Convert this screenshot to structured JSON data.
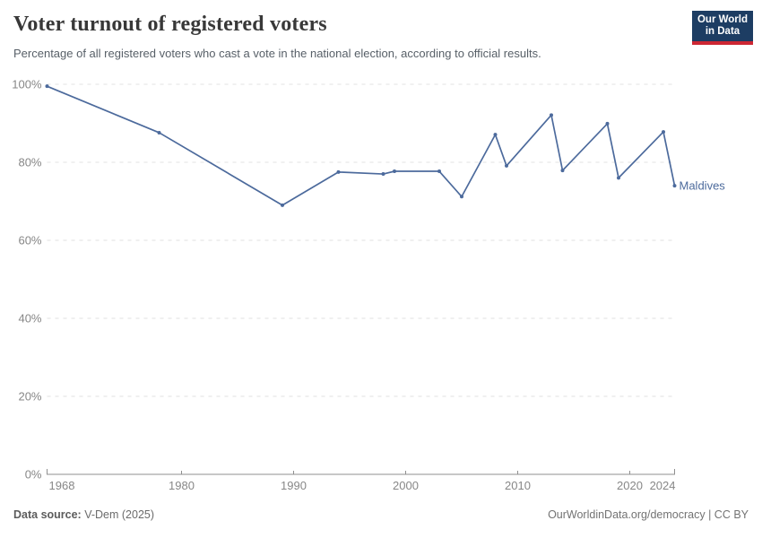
{
  "header": {
    "title": "Voter turnout of registered voters",
    "subtitle": "Percentage of all registered voters who cast a vote in the national election, according to official results."
  },
  "logo": {
    "line1": "Our World",
    "line2": "in Data",
    "bg_color": "#1d3d63",
    "accent_color": "#cd2733"
  },
  "chart_data": {
    "type": "line",
    "title": "Voter turnout of registered voters",
    "xlabel": "",
    "ylabel": "",
    "xlim": [
      1968,
      2024
    ],
    "ylim": [
      0,
      100
    ],
    "grid": "horizontal-dashed",
    "legend_position": "end-of-line-label",
    "x_ticks": [
      1968,
      1980,
      1990,
      2000,
      2010,
      2020,
      2024
    ],
    "y_ticks": [
      0,
      20,
      40,
      60,
      80,
      100
    ],
    "y_tick_suffix": "%",
    "series": [
      {
        "name": "Maldives",
        "color": "#4c6a9c",
        "points": [
          {
            "year": 1968,
            "value": 99.5
          },
          {
            "year": 1978,
            "value": 87.6
          },
          {
            "year": 1989,
            "value": 69.0
          },
          {
            "year": 1994,
            "value": 77.5
          },
          {
            "year": 1998,
            "value": 77.0
          },
          {
            "year": 1999,
            "value": 77.7
          },
          {
            "year": 2003,
            "value": 77.7
          },
          {
            "year": 2005,
            "value": 71.2
          },
          {
            "year": 2008,
            "value": 87.1
          },
          {
            "year": 2009,
            "value": 79.1
          },
          {
            "year": 2013,
            "value": 92.1
          },
          {
            "year": 2014,
            "value": 77.9
          },
          {
            "year": 2018,
            "value": 89.9
          },
          {
            "year": 2019,
            "value": 76.0
          },
          {
            "year": 2023,
            "value": 87.8
          },
          {
            "year": 2024,
            "value": 74.0
          }
        ]
      }
    ],
    "axis_color": "#8f8f8f",
    "grid_color": "#e0e0e0",
    "tick_label_color": "#878787"
  },
  "footer": {
    "source_label": "Data source:",
    "source_value": " V-Dem (2025)",
    "credit": "OurWorldinData.org/democracy | CC BY"
  }
}
